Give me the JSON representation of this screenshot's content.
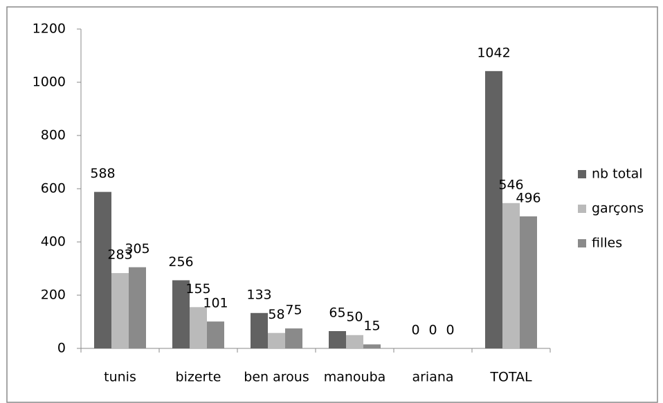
{
  "chart_data": {
    "type": "bar",
    "categories": [
      "tunis",
      "bizerte",
      "ben arous",
      "manouba",
      "ariana",
      "TOTAL"
    ],
    "series": [
      {
        "name": "nb total",
        "color": "#626262",
        "values": [
          588,
          256,
          133,
          65,
          0,
          1042
        ]
      },
      {
        "name": "garçons",
        "color": "#bababa",
        "values": [
          283,
          155,
          58,
          50,
          0,
          546
        ]
      },
      {
        "name": "filles",
        "color": "#8a8a8a",
        "values": [
          305,
          101,
          75,
          15,
          0,
          496
        ]
      }
    ],
    "ylim": [
      0,
      1200
    ],
    "yticks": [
      0,
      200,
      400,
      600,
      800,
      1000,
      1200
    ],
    "legend": "right"
  }
}
